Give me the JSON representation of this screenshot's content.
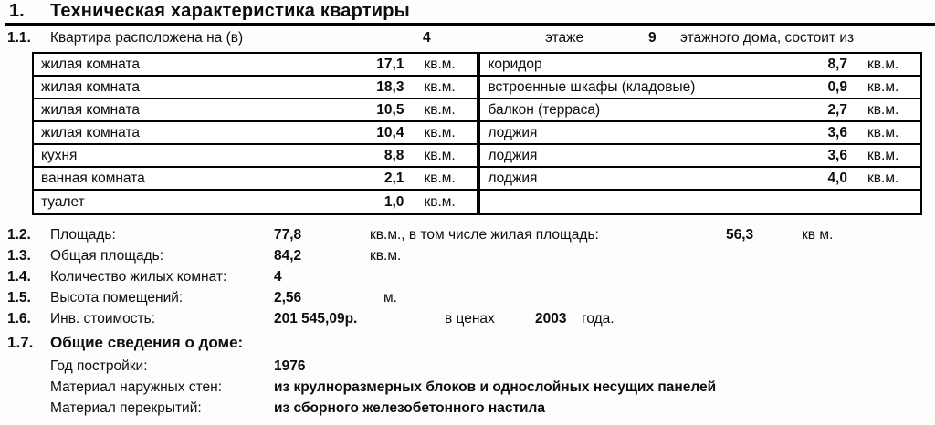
{
  "title": {
    "number": "1.",
    "text": "Техническая характеристика квартиры"
  },
  "line_1_1": {
    "number": "1.1.",
    "label": "Квартира расположена  на (в)",
    "floor": "4",
    "word_floor": "этаже",
    "floors_total": "9",
    "suffix": "этажного дома, состоит из"
  },
  "rooms": {
    "left": [
      {
        "name": "жилая комната",
        "area": "17,1",
        "unit": "кв.м."
      },
      {
        "name": "жилая комната",
        "area": "18,3",
        "unit": "кв.м."
      },
      {
        "name": "жилая комната",
        "area": "10,5",
        "unit": "кв.м."
      },
      {
        "name": "жилая комната",
        "area": "10,4",
        "unit": "кв.м."
      },
      {
        "name": "кухня",
        "area": "8,8",
        "unit": "кв.м."
      },
      {
        "name": "ванная комната",
        "area": "2,1",
        "unit": "кв.м."
      },
      {
        "name": "туалет",
        "area": "1,0",
        "unit": "кв.м."
      }
    ],
    "right": [
      {
        "name": "коридор",
        "area": "8,7",
        "unit": "кв.м."
      },
      {
        "name": "встроенные шкафы (кладовые)",
        "area": "0,9",
        "unit": "кв.м."
      },
      {
        "name": "балкон (терраса)",
        "area": "2,7",
        "unit": "кв.м."
      },
      {
        "name": "лоджия",
        "area": "3,6",
        "unit": "кв.м."
      },
      {
        "name": "лоджия",
        "area": "3,6",
        "unit": "кв.м."
      },
      {
        "name": "лоджия",
        "area": "4,0",
        "unit": "кв.м."
      },
      {
        "name": "",
        "area": "",
        "unit": ""
      }
    ]
  },
  "item_1_2": {
    "number": "1.2.",
    "label": "Площадь:",
    "value": "77,8",
    "unit": "кв.м., в том числе жилая площадь:",
    "value2": "56,3",
    "unit2": "кв м."
  },
  "item_1_3": {
    "number": "1.3.",
    "label": "Общая площадь:",
    "value": "84,2",
    "unit": "кв.м."
  },
  "item_1_4": {
    "number": "1.4.",
    "label": "Количество жилых комнат:",
    "value": "4"
  },
  "item_1_5": {
    "number": "1.5.",
    "label": "Высота помещений:",
    "value": "2,56",
    "unit": "м."
  },
  "item_1_6": {
    "number": "1.6.",
    "label": "Инв. стоимость:",
    "value": "201 545,09р.",
    "prices_label": "в ценах",
    "year": "2003",
    "year_suffix": "года."
  },
  "item_1_7": {
    "number": "1.7.",
    "label": "Общие сведения о доме:"
  },
  "house": {
    "year_label": "Год постройки:",
    "year_value": "1976",
    "walls_label": "Материал наружных стен:",
    "walls_value": "из крулноразмерных блоков и однослойных несущих панелей",
    "slabs_label": "Материал перекрытий:",
    "slabs_value": "из сборного железобетонного настила"
  }
}
